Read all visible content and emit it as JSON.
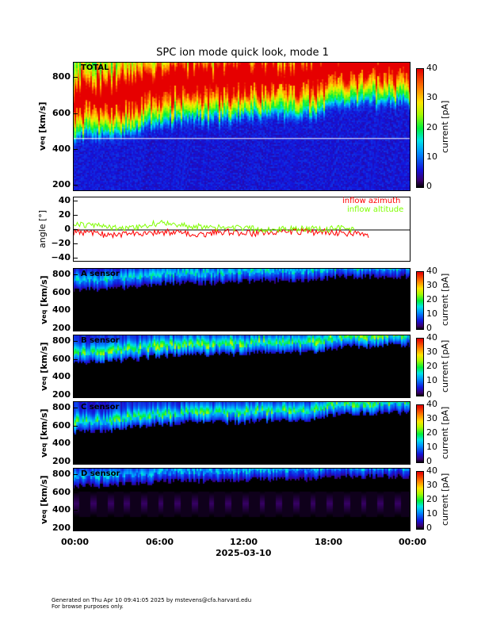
{
  "title": "SPC ion mode quick look, mode 1",
  "footer": {
    "line1": "Generated on Thu Apr 10 09:41:05 2025 by mstevens@cfa.harvard.edu",
    "line2": "For browse purposes only."
  },
  "colors": {
    "azimuth": "#ff0000",
    "altitude": "#80ff00",
    "white_line": "#ffffff"
  },
  "chart_data": [
    {
      "type": "heatmap",
      "panel": "TOTAL",
      "label": "TOTAL",
      "ylabel": "v_eq [km/s]",
      "ylabel_main": "v",
      "ylabel_sub": "eq",
      "ylabel_unit": "[km/s]",
      "yticks": [
        "200",
        "400",
        "600",
        "800"
      ],
      "ylim": [
        165,
        885
      ],
      "colorbar": {
        "label": "current [pA]",
        "range": [
          0,
          40
        ],
        "ticks": [
          "0",
          "10",
          "20",
          "30",
          "40"
        ]
      },
      "background_level": 6,
      "hourly_peak_velocity_kms": [
        640,
        650,
        650,
        660,
        680,
        700,
        720,
        730,
        740,
        740,
        740,
        740,
        750,
        760,
        760,
        760,
        760,
        760,
        800,
        820,
        830,
        830,
        840,
        840,
        840
      ],
      "peak_level_pA": 34,
      "reference_line_kms": 460
    },
    {
      "type": "line",
      "panel": "angle",
      "ylabel": "angle [°]",
      "yticks": [
        "40",
        "20",
        "0",
        "−20",
        "−40"
      ],
      "ylim": [
        -45,
        45
      ],
      "legend": {
        "placement": "top-right",
        "entries": [
          "inflow azimuth",
          "inflow altitude"
        ]
      },
      "series": [
        {
          "name": "inflow azimuth",
          "color": "#ff0000",
          "hourly_mean_deg": [
            -3,
            -5,
            -6,
            -8,
            -5,
            -4,
            -4,
            -3,
            -5,
            -6,
            -4,
            -3,
            -4,
            -5,
            -4,
            -3,
            -2,
            -3,
            -2,
            -4,
            -6,
            -8,
            null,
            null,
            null
          ]
        },
        {
          "name": "inflow altitude",
          "color": "#80ff00",
          "hourly_mean_deg": [
            6,
            7,
            5,
            2,
            3,
            6,
            9,
            8,
            5,
            4,
            3,
            2,
            2,
            1,
            0,
            1,
            2,
            2,
            1,
            2,
            0,
            null,
            null,
            null,
            null
          ]
        }
      ]
    },
    {
      "type": "heatmap",
      "panel": "A sensor",
      "label": "A sensor",
      "yticks": [
        "200",
        "400",
        "600",
        "800"
      ],
      "ylim": [
        165,
        870
      ],
      "colorbar": {
        "label": "current [pA]",
        "range": [
          0,
          40
        ],
        "ticks": [
          "0",
          "10",
          "20",
          "30",
          "40"
        ]
      },
      "hourly_peak_velocity_kms": [
        720,
        730,
        730,
        740,
        760,
        780,
        790,
        800,
        800,
        800,
        800,
        810,
        820,
        830,
        830,
        830,
        830,
        830,
        860,
        870,
        870,
        870,
        870,
        870,
        870
      ],
      "peak_level_pA": 10,
      "background_level": 0
    },
    {
      "type": "heatmap",
      "panel": "B sensor",
      "label": "B sensor",
      "yticks": [
        "200",
        "400",
        "600",
        "800"
      ],
      "ylim": [
        165,
        870
      ],
      "colorbar": {
        "label": "current [pA]",
        "range": [
          0,
          40
        ],
        "ticks": [
          "0",
          "10",
          "20",
          "30",
          "40"
        ]
      },
      "hourly_peak_velocity_kms": [
        650,
        660,
        660,
        670,
        690,
        710,
        730,
        740,
        750,
        750,
        750,
        750,
        760,
        770,
        770,
        770,
        770,
        770,
        810,
        830,
        840,
        840,
        850,
        850,
        850
      ],
      "peak_level_pA": 14,
      "background_level": 0
    },
    {
      "type": "heatmap",
      "panel": "C sensor",
      "label": "C sensor",
      "yticks": [
        "200",
        "400",
        "600",
        "800"
      ],
      "ylim": [
        165,
        870
      ],
      "colorbar": {
        "label": "current [pA]",
        "range": [
          0,
          40
        ],
        "ticks": [
          "0",
          "10",
          "20",
          "30",
          "40"
        ]
      },
      "hourly_peak_velocity_kms": [
        630,
        640,
        640,
        650,
        670,
        690,
        710,
        720,
        730,
        730,
        730,
        730,
        740,
        750,
        750,
        750,
        750,
        750,
        800,
        820,
        830,
        830,
        840,
        840,
        840
      ],
      "peak_level_pA": 13,
      "background_level": 0
    },
    {
      "type": "heatmap",
      "panel": "D sensor",
      "label": "D sensor",
      "yticks": [
        "200",
        "400",
        "600",
        "800"
      ],
      "ylim": [
        165,
        870
      ],
      "colorbar": {
        "label": "current [pA]",
        "range": [
          0,
          40
        ],
        "ticks": [
          "0",
          "10",
          "20",
          "30",
          "40"
        ]
      },
      "hourly_peak_velocity_kms": [
        760,
        770,
        770,
        780,
        790,
        800,
        810,
        820,
        820,
        820,
        820,
        830,
        830,
        840,
        840,
        840,
        840,
        840,
        860,
        870,
        870,
        870,
        870,
        870,
        870
      ],
      "peak_level_pA": 9,
      "background_level": 0,
      "periodic_low_band": true
    }
  ],
  "xaxis": {
    "ticks": [
      "00:00",
      "06:00",
      "12:00",
      "18:00",
      "00:00"
    ],
    "date": "2025-03-10"
  }
}
